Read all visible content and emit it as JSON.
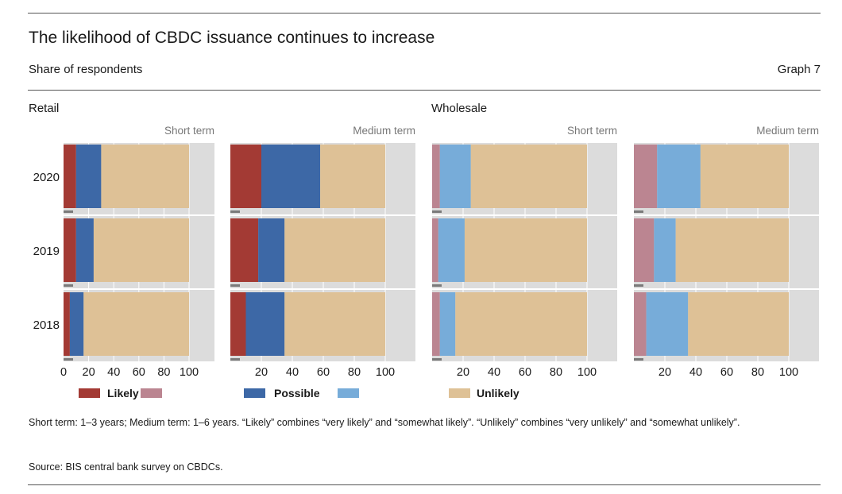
{
  "header": {
    "title": "The likelihood of CBDC issuance continues to increase",
    "subtitle": "Share of respondents",
    "graph_label": "Graph 7"
  },
  "sections": {
    "retail": "Retail",
    "wholesale": "Wholesale"
  },
  "notes": {
    "terms": "Short term: 1–3 years; Medium term: 1–6 years. “Likely” combines “very likely” and “somewhat likely”. “Unlikely” combines “very unlikely” and “somewhat unlikely”.",
    "source": "Source: BIS central bank survey on CBDCs."
  },
  "colors": {
    "retail_likely": "#a33a34",
    "retail_possible": "#3d68a6",
    "wholesale_likely": "#bb8591",
    "wholesale_possible": "#77acd9",
    "unlikely": "#dec196",
    "panel_bg": "#dcdcdc"
  },
  "chart_data": [
    {
      "type": "bar",
      "orientation": "horizontal",
      "stacked": true,
      "section": "Retail",
      "panel_title": "Short term",
      "categories": [
        "2020",
        "2019",
        "2018"
      ],
      "series": [
        {
          "name": "Likely",
          "values": [
            10,
            10,
            5
          ]
        },
        {
          "name": "Possible",
          "values": [
            20,
            14,
            11
          ]
        },
        {
          "name": "Unlikely",
          "values": [
            70,
            76,
            84
          ]
        }
      ],
      "xlim": [
        0,
        120
      ],
      "xticks": [
        "0",
        "20",
        "40",
        "60",
        "80",
        "100"
      ]
    },
    {
      "type": "bar",
      "orientation": "horizontal",
      "stacked": true,
      "section": "Retail",
      "panel_title": "Medium term",
      "categories": [
        "2020",
        "2019",
        "2018"
      ],
      "series": [
        {
          "name": "Likely",
          "values": [
            20,
            18,
            10
          ]
        },
        {
          "name": "Possible",
          "values": [
            38,
            17,
            25
          ]
        },
        {
          "name": "Unlikely",
          "values": [
            42,
            65,
            65
          ]
        }
      ],
      "xlim": [
        0,
        120
      ],
      "xticks": [
        "20",
        "40",
        "60",
        "80",
        "100"
      ]
    },
    {
      "type": "bar",
      "orientation": "horizontal",
      "stacked": true,
      "section": "Wholesale",
      "panel_title": "Short term",
      "categories": [
        "2020",
        "2019",
        "2018"
      ],
      "series": [
        {
          "name": "Likely",
          "values": [
            5,
            4,
            5
          ]
        },
        {
          "name": "Possible",
          "values": [
            20,
            17,
            10
          ]
        },
        {
          "name": "Unlikely",
          "values": [
            75,
            79,
            85
          ]
        }
      ],
      "xlim": [
        0,
        120
      ],
      "xticks": [
        "20",
        "40",
        "60",
        "80",
        "100"
      ]
    },
    {
      "type": "bar",
      "orientation": "horizontal",
      "stacked": true,
      "section": "Wholesale",
      "panel_title": "Medium term",
      "categories": [
        "2020",
        "2019",
        "2018"
      ],
      "series": [
        {
          "name": "Likely",
          "values": [
            15,
            13,
            8
          ]
        },
        {
          "name": "Possible",
          "values": [
            28,
            14,
            27
          ]
        },
        {
          "name": "Unlikely",
          "values": [
            57,
            73,
            65
          ]
        }
      ],
      "xlim": [
        0,
        120
      ],
      "xticks": [
        "20",
        "40",
        "60",
        "80",
        "100"
      ]
    }
  ],
  "legend": [
    {
      "label": "Likely",
      "swatches": [
        "retail_likely",
        "wholesale_likely"
      ]
    },
    {
      "label": "Possible",
      "swatches": [
        "retail_possible",
        "wholesale_possible"
      ]
    },
    {
      "label": "Unlikely",
      "swatches": [
        "unlikely"
      ]
    }
  ]
}
